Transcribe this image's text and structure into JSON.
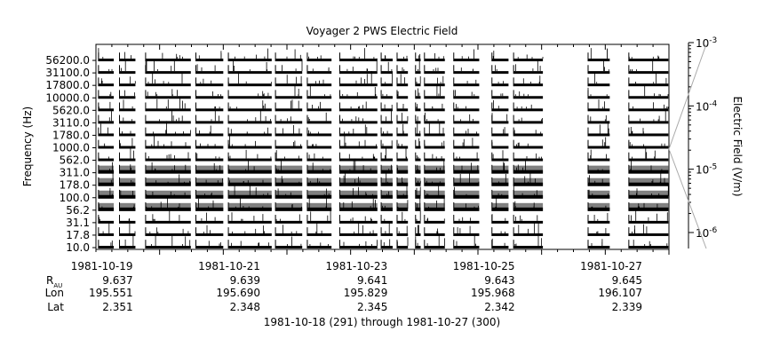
{
  "chart_data": {
    "type": "stacked-line-panels",
    "title": "Voyager 2 PWS Electric Field",
    "ylabel": "Frequency (Hz)",
    "y2label": "Electric Field (V/m)",
    "channels": [
      "56200.0",
      "31100.0",
      "17800.0",
      "10000.0",
      "5620.0",
      "3110.0",
      "1780.0",
      "1000.0",
      "562.0",
      "311.0",
      "178.0",
      "100.0",
      "56.2",
      "31.1",
      "17.8",
      "10.0"
    ],
    "y2_ticks": [
      {
        "base": "10",
        "exp": "-3"
      },
      {
        "base": "10",
        "exp": "-4"
      },
      {
        "base": "10",
        "exp": "-5"
      },
      {
        "base": "10",
        "exp": "-6"
      }
    ],
    "y2_scale": "log",
    "x_range_days": [
      291,
      300
    ],
    "x_major_ticks": [
      292,
      293,
      294,
      295,
      296,
      297,
      298,
      299,
      300
    ],
    "x_labels": [
      {
        "day": 292,
        "date": "1981-10-19",
        "rau": "9.637",
        "lon": "195.551",
        "lat": "2.351"
      },
      {
        "day": 294,
        "date": "1981-10-21",
        "rau": "9.639",
        "lon": "195.690",
        "lat": "2.348"
      },
      {
        "day": 296,
        "date": "1981-10-23",
        "rau": "9.641",
        "lon": "195.829",
        "lat": "2.345"
      },
      {
        "day": 298,
        "date": "1981-10-25",
        "rau": "9.643",
        "lon": "195.968",
        "lat": "2.342"
      },
      {
        "day": 300,
        "date": "1981-10-27",
        "rau": "9.645",
        "lon": "196.107",
        "lat": "2.339"
      }
    ],
    "row_labels": {
      "rau_main": "R",
      "rau_sub": "AU",
      "lon": "Lon",
      "lat": "Lat"
    },
    "footer": "1981-10-18 (291) through 1981-10-27 (300)",
    "data_segments_days": [
      [
        291.04,
        291.28
      ],
      [
        291.37,
        291.62
      ],
      [
        291.78,
        292.49
      ],
      [
        292.57,
        293.0
      ],
      [
        293.08,
        293.76
      ],
      [
        293.82,
        294.24
      ],
      [
        294.32,
        294.7
      ],
      [
        294.83,
        295.42
      ],
      [
        295.48,
        295.66
      ],
      [
        295.73,
        295.9
      ],
      [
        296.02,
        296.1
      ],
      [
        296.16,
        296.48
      ],
      [
        296.62,
        297.02
      ],
      [
        297.22,
        297.48
      ],
      [
        297.56,
        298.02
      ],
      [
        298.73,
        299.07
      ],
      [
        299.37,
        299.99
      ]
    ],
    "grid": false
  }
}
